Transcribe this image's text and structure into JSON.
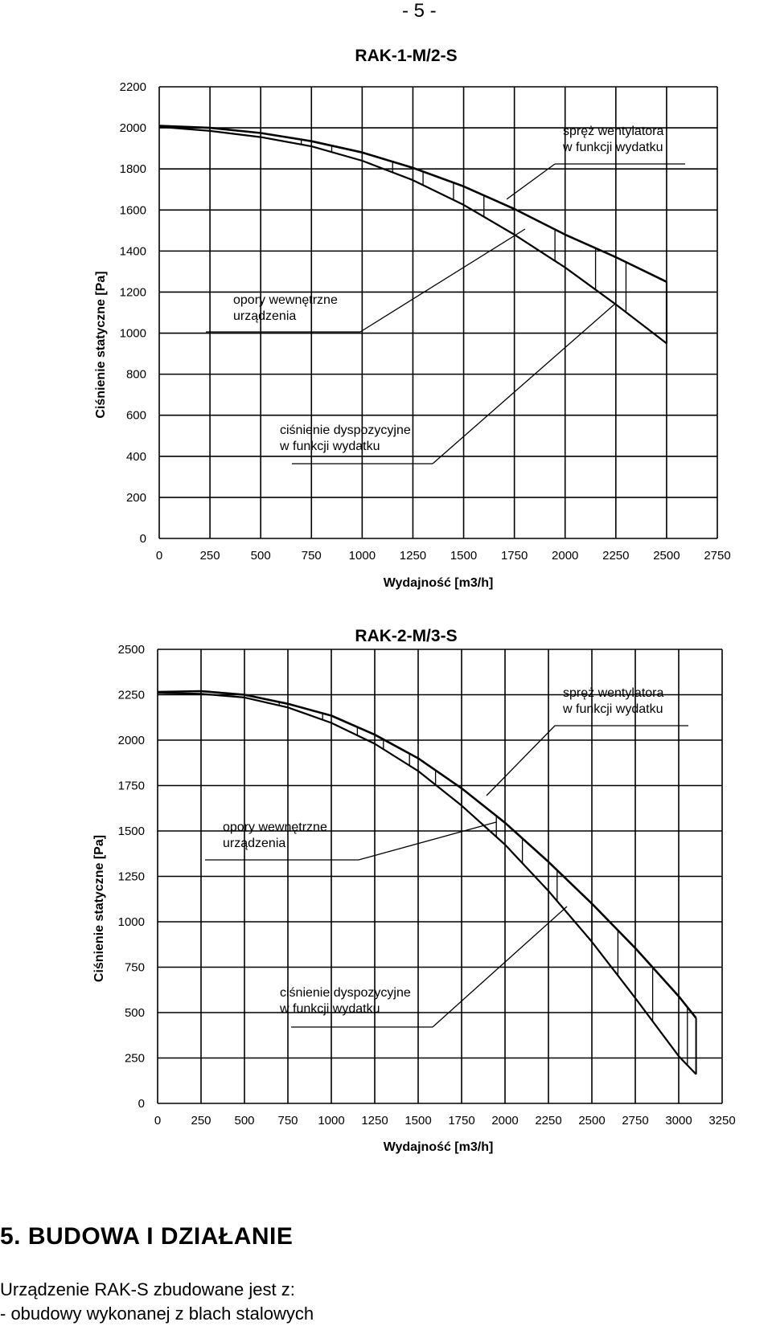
{
  "page": {
    "number": "- 5 -"
  },
  "charts": [
    {
      "title": "RAK-1-M/2-S",
      "ylabel": "Ciśnienie statyczne [Pa]",
      "xlabel": "Wydajność [m3/h]",
      "annotations": {
        "fan": [
          "spręż wentylatora",
          "w funkcji wydatku"
        ],
        "internal": [
          "opory wewnętrzne",
          "urządzenia"
        ],
        "available": [
          "ciśnienie dyspozycyjne",
          "w funkcji wydatku"
        ]
      }
    },
    {
      "title": "RAK-2-M/3-S",
      "ylabel": "Ciśnienie statyczne [Pa]",
      "xlabel": "Wydajność [m3/h]",
      "annotations": {
        "fan": [
          "spręż wentylatora",
          "w funkcji wydatku"
        ],
        "internal": [
          "opory wewnętrzne",
          "urządzenia"
        ],
        "available": [
          "ciśnienie dyspozycyjne",
          "w funkcji wydatku"
        ]
      }
    }
  ],
  "chart_data": [
    {
      "type": "line",
      "title": "RAK-1-M/2-S",
      "xlabel": "Wydajność [m3/h]",
      "ylabel": "Ciśnienie statyczne [Pa]",
      "xlim": [
        0,
        2750
      ],
      "ylim": [
        0,
        2200
      ],
      "xticks": [
        0,
        250,
        500,
        750,
        1000,
        1250,
        1500,
        1750,
        2000,
        2250,
        2500,
        2750
      ],
      "yticks": [
        0,
        200,
        400,
        600,
        800,
        1000,
        1200,
        1400,
        1600,
        1800,
        2000,
        2200
      ],
      "grid": true,
      "x": [
        0,
        250,
        500,
        750,
        1000,
        1250,
        1500,
        1750,
        2000,
        2250,
        2500
      ],
      "series": [
        {
          "name": "spręż wentylatora w funkcji wydatku",
          "values": [
            2010,
            2000,
            1975,
            1935,
            1880,
            1805,
            1715,
            1605,
            1480,
            1370,
            1250
          ]
        },
        {
          "name": "ciśnienie dyspozycyjne w funkcji wydatku",
          "values": [
            2005,
            1985,
            1955,
            1910,
            1840,
            1745,
            1625,
            1480,
            1320,
            1140,
            950
          ]
        }
      ],
      "hatch_x": [
        500,
        700,
        850,
        1000,
        1150,
        1300,
        1450,
        1600,
        1750,
        1950,
        2150,
        2300,
        2500
      ]
    },
    {
      "type": "line",
      "title": "RAK-2-M/3-S",
      "xlabel": "Wydajność [m3/h]",
      "ylabel": "Ciśnienie statyczne [Pa]",
      "xlim": [
        0,
        3250
      ],
      "ylim": [
        0,
        2500
      ],
      "xticks": [
        0,
        250,
        500,
        750,
        1000,
        1250,
        1500,
        1750,
        2000,
        2250,
        2500,
        2750,
        3000,
        3250
      ],
      "yticks": [
        0,
        250,
        500,
        750,
        1000,
        1250,
        1500,
        1750,
        2000,
        2250,
        2500
      ],
      "grid": true,
      "x": [
        0,
        250,
        500,
        750,
        1000,
        1250,
        1500,
        1750,
        2000,
        2250,
        2500,
        2750,
        3000,
        3100
      ],
      "series": [
        {
          "name": "spręż wentylatora w funkcji wydatku",
          "values": [
            2265,
            2270,
            2250,
            2200,
            2135,
            2030,
            1900,
            1735,
            1545,
            1330,
            1100,
            855,
            590,
            470
          ]
        },
        {
          "name": "ciśnienie dyspozycyjne w funkcji wydatku",
          "values": [
            2260,
            2255,
            2235,
            2180,
            2095,
            1980,
            1830,
            1640,
            1425,
            1170,
            890,
            580,
            260,
            160
          ]
        }
      ],
      "hatch_x": [
        700,
        950,
        1150,
        1300,
        1450,
        1600,
        1750,
        1950,
        2100,
        2300,
        2500,
        2650,
        2850,
        3050
      ]
    }
  ],
  "section": {
    "heading": "5. BUDOWA I DZIAŁANIE",
    "lines": [
      "Urządzenie RAK-S zbudowane jest z:",
      "- obudowy wykonanej z blach stalowych"
    ]
  }
}
